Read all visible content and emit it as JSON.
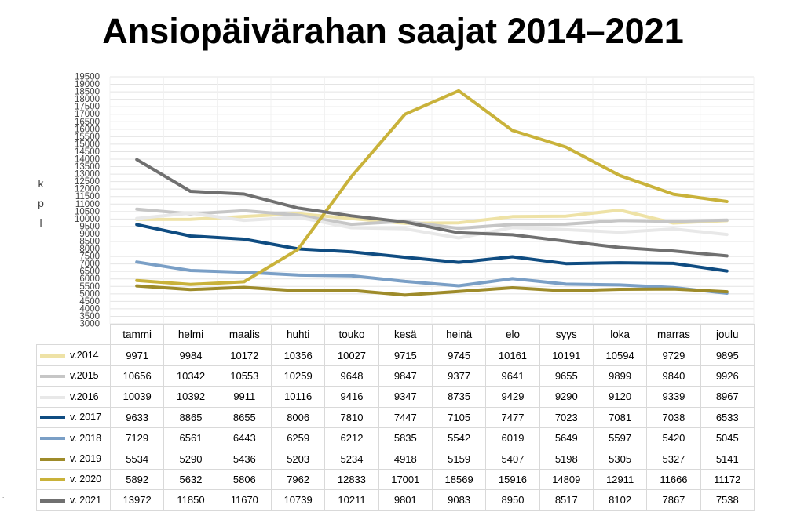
{
  "title": "Ansiopäivärahan saajat 2014–2021",
  "ylabel": "kpl",
  "chart_data": {
    "type": "line",
    "title": "Ansiopäivärahan saajat 2014–2021",
    "xlabel": "",
    "ylabel": "kpl",
    "ylim": [
      3000,
      19500
    ],
    "ytick_step": 500,
    "grid": true,
    "legend": "table",
    "categories": [
      "tammi",
      "helmi",
      "maalis",
      "huhti",
      "touko",
      "kesä",
      "heinä",
      "elo",
      "syys",
      "loka",
      "marras",
      "joulu"
    ],
    "series": [
      {
        "name": "v.2014",
        "color": "#eee2a6",
        "values": [
          9971,
          9984,
          10172,
          10356,
          10027,
          9715,
          9745,
          10161,
          10191,
          10594,
          9729,
          9895
        ]
      },
      {
        "name": "v.2015",
        "color": "#c6c6c6",
        "values": [
          10656,
          10342,
          10553,
          10259,
          9648,
          9847,
          9377,
          9641,
          9655,
          9899,
          9840,
          9926
        ]
      },
      {
        "name": "v.2016",
        "color": "#e8e8e8",
        "values": [
          10039,
          10392,
          9911,
          10116,
          9416,
          9347,
          8735,
          9429,
          9290,
          9120,
          9339,
          8967
        ]
      },
      {
        "name": "v. 2017",
        "color": "#0f4c81",
        "values": [
          9633,
          8865,
          8655,
          8006,
          7810,
          7447,
          7105,
          7477,
          7023,
          7081,
          7038,
          6533
        ]
      },
      {
        "name": "v. 2018",
        "color": "#7a9fc6",
        "values": [
          7129,
          6561,
          6443,
          6259,
          6212,
          5835,
          5542,
          6019,
          5649,
          5597,
          5420,
          5045
        ]
      },
      {
        "name": "v. 2019",
        "color": "#9e8b2a",
        "values": [
          5534,
          5290,
          5436,
          5203,
          5234,
          4918,
          5159,
          5407,
          5198,
          5305,
          5327,
          5141
        ]
      },
      {
        "name": "v. 2020",
        "color": "#c9b23a",
        "values": [
          5892,
          5632,
          5806,
          7962,
          12833,
          17001,
          18569,
          15916,
          14809,
          12911,
          11666,
          11172
        ]
      },
      {
        "name": "v. 2021",
        "color": "#707070",
        "values": [
          13972,
          11850,
          11670,
          10739,
          10211,
          9801,
          9083,
          8950,
          8517,
          8102,
          7867,
          7538
        ]
      }
    ]
  }
}
